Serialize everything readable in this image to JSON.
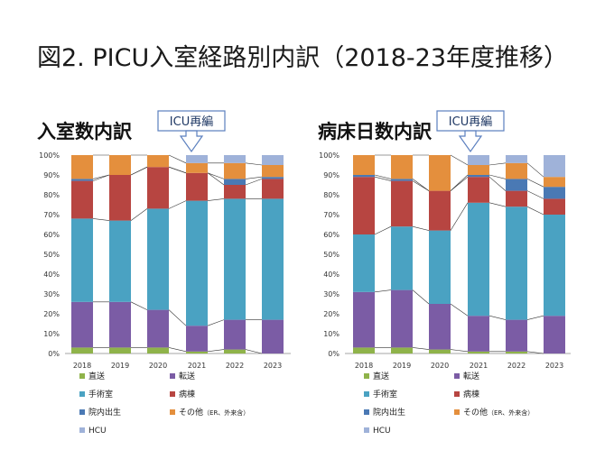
{
  "slide_title": "図2. PICU入室経路別内訳（2018-23年度推移）",
  "colors": {
    "直送": "#8fb34a",
    "転送": "#7b5ca5",
    "手術室": "#4aa2c2",
    "病棟": "#b74541",
    "院内出生": "#4a79b4",
    "その他": "#e48f3d",
    "HCU": "#9fb2d9"
  },
  "callout": {
    "label": "ICU再編"
  },
  "legend": {
    "items": [
      {
        "key": "直送",
        "label": "直送"
      },
      {
        "key": "転送",
        "label": "転送"
      },
      {
        "key": "手術室",
        "label": "手術室"
      },
      {
        "key": "病棟",
        "label": "病棟"
      },
      {
        "key": "院内出生",
        "label": "院内出生"
      },
      {
        "key": "その他",
        "label": "その他",
        "suffix_small": "（ER、外来含）"
      },
      {
        "key": "HCU",
        "label": "HCU"
      }
    ]
  },
  "chart_data": [
    {
      "type": "bar",
      "stacked": true,
      "title": "入室数内訳",
      "categories": [
        "2018",
        "2019",
        "2020",
        "2021",
        "2022",
        "2023"
      ],
      "ylim": [
        0,
        100
      ],
      "yticks": [
        "0%",
        "10%",
        "20%",
        "30%",
        "40%",
        "50%",
        "60%",
        "70%",
        "80%",
        "90%",
        "100%"
      ],
      "series": [
        {
          "name": "直送",
          "values": [
            3,
            3,
            3,
            1,
            2,
            0
          ]
        },
        {
          "name": "転送",
          "values": [
            23,
            23,
            19,
            13,
            15,
            17
          ]
        },
        {
          "name": "手術室",
          "values": [
            42,
            41,
            51,
            63,
            61,
            61
          ]
        },
        {
          "name": "病棟",
          "values": [
            19,
            23,
            21,
            14,
            7,
            10
          ]
        },
        {
          "name": "院内出生",
          "values": [
            1,
            0,
            0,
            0,
            3,
            1
          ]
        },
        {
          "name": "その他",
          "values": [
            12,
            10,
            6,
            5,
            8,
            6
          ]
        },
        {
          "name": "HCU",
          "values": [
            0,
            0,
            0,
            4,
            4,
            5
          ]
        }
      ]
    },
    {
      "type": "bar",
      "stacked": true,
      "title": "病床日数内訳",
      "categories": [
        "2018",
        "2019",
        "2020",
        "2021",
        "2022",
        "2023"
      ],
      "ylim": [
        0,
        100
      ],
      "yticks": [
        "0%",
        "10%",
        "20%",
        "30%",
        "40%",
        "50%",
        "60%",
        "70%",
        "80%",
        "90%",
        "100%"
      ],
      "series": [
        {
          "name": "直送",
          "values": [
            3,
            3,
            2,
            1,
            1,
            0
          ]
        },
        {
          "name": "転送",
          "values": [
            28,
            29,
            23,
            18,
            16,
            19
          ]
        },
        {
          "name": "手術室",
          "values": [
            29,
            32,
            37,
            57,
            57,
            51
          ]
        },
        {
          "name": "病棟",
          "values": [
            29,
            23,
            20,
            13,
            8,
            8
          ]
        },
        {
          "name": "院内出生",
          "values": [
            1,
            1,
            0,
            1,
            6,
            6
          ]
        },
        {
          "name": "その他",
          "values": [
            10,
            12,
            18,
            5,
            8,
            5
          ]
        },
        {
          "name": "HCU",
          "values": [
            0,
            0,
            0,
            5,
            4,
            11
          ]
        }
      ]
    }
  ]
}
